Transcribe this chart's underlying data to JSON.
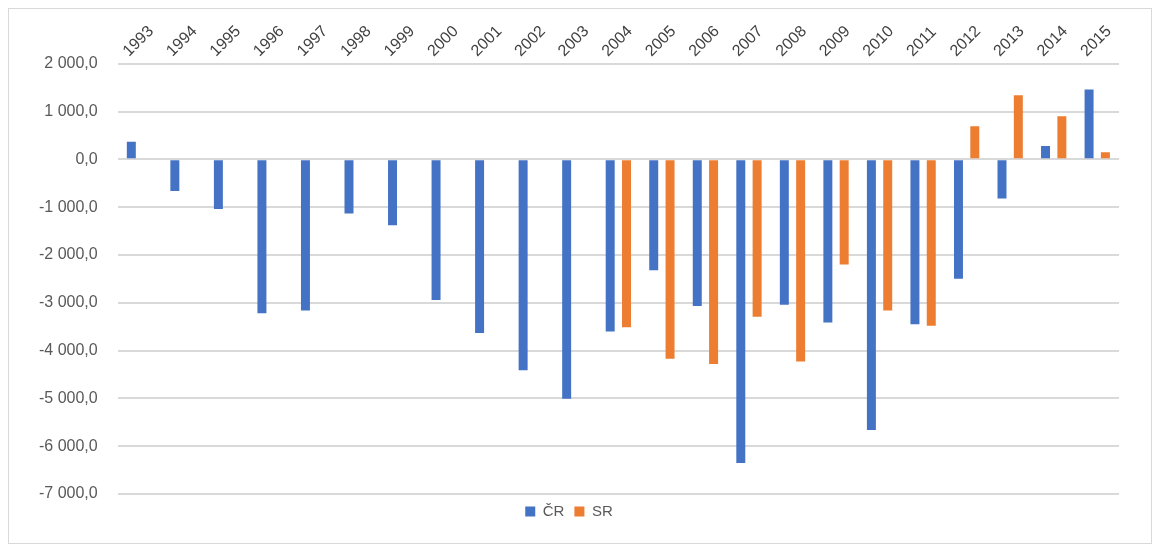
{
  "chart_data": {
    "type": "bar",
    "categories": [
      "1993",
      "1994",
      "1995",
      "1996",
      "1997",
      "1998",
      "1999",
      "2000",
      "2001",
      "2002",
      "2003",
      "2004",
      "2005",
      "2006",
      "2007",
      "2008",
      "2009",
      "2010",
      "2011",
      "2012",
      "2013",
      "2014",
      "2015"
    ],
    "series": [
      {
        "name": "ČR",
        "color": "#4472c4",
        "values": [
          370,
          -660,
          -1040,
          -3220,
          -3160,
          -1130,
          -1380,
          -2940,
          -3630,
          -4410,
          -5010,
          -3600,
          -2320,
          -3070,
          -6350,
          -3040,
          -3410,
          -5660,
          -3450,
          -2500,
          -820,
          280,
          1460
        ]
      },
      {
        "name": "SR",
        "color": "#ed7d31",
        "values": [
          null,
          null,
          null,
          null,
          null,
          null,
          null,
          null,
          null,
          null,
          null,
          -3510,
          -4170,
          -4280,
          -3290,
          -4230,
          -2200,
          -3160,
          -3480,
          690,
          1340,
          900,
          150
        ]
      }
    ],
    "ylim": [
      -7000,
      2000
    ],
    "yticks": [
      {
        "value": 2000,
        "label": "2 000,0"
      },
      {
        "value": 1000,
        "label": "1 000,0"
      },
      {
        "value": 0,
        "label": "0,0"
      },
      {
        "value": -1000,
        "label": "-1 000,0"
      },
      {
        "value": -2000,
        "label": "-2 000,0"
      },
      {
        "value": -3000,
        "label": "-3 000,0"
      },
      {
        "value": -4000,
        "label": "-4 000,0"
      },
      {
        "value": -5000,
        "label": "-5 000,0"
      },
      {
        "value": -6000,
        "label": "-6 000,0"
      },
      {
        "value": -7000,
        "label": "-7 000,0"
      }
    ],
    "grid": "y",
    "legend": "bottom"
  }
}
